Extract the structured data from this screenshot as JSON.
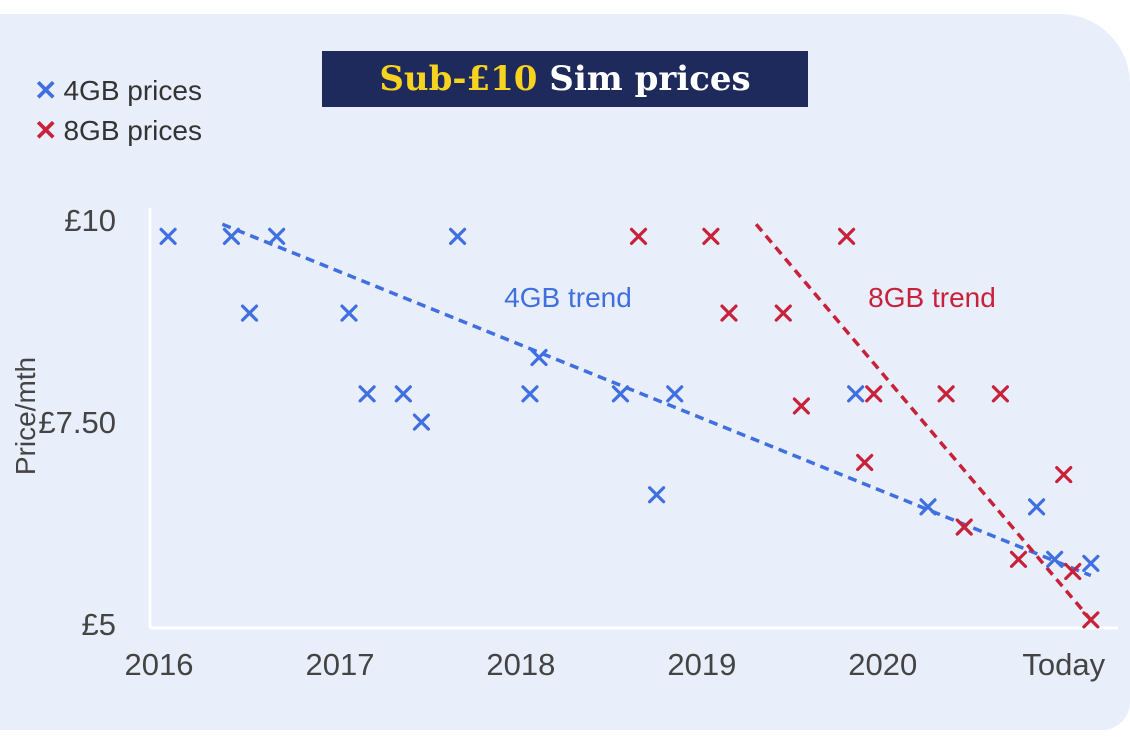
{
  "chart_data": {
    "type": "scatter",
    "title": "Sub-£10 Sim prices",
    "title_highlight": "Sub-£10",
    "title_rest": " Sim prices",
    "ylabel": "Price/mth",
    "xlabel": "",
    "x_ticks": [
      "2016",
      "2017",
      "2018",
      "2019",
      "2020",
      "Today"
    ],
    "x_tick_values": [
      2016,
      2017,
      2018,
      2019,
      2020,
      2021
    ],
    "y_ticks": [
      "£10",
      "£7.50",
      "£5"
    ],
    "y_tick_values": [
      10,
      7.5,
      5
    ],
    "xlim": [
      2015.95,
      2021.3
    ],
    "ylim": [
      4.95,
      10.3
    ],
    "grid": false,
    "legend_position": "top-left",
    "series": [
      {
        "name": "4GB prices",
        "color": "#3f6fe0",
        "marker": "x",
        "points": [
          [
            2016.05,
            9.8
          ],
          [
            2016.4,
            9.8
          ],
          [
            2016.5,
            8.85
          ],
          [
            2016.65,
            9.8
          ],
          [
            2017.05,
            8.85
          ],
          [
            2017.15,
            7.85
          ],
          [
            2017.35,
            7.85
          ],
          [
            2017.45,
            7.5
          ],
          [
            2017.65,
            9.8
          ],
          [
            2018.05,
            7.85
          ],
          [
            2018.1,
            8.3
          ],
          [
            2018.55,
            7.85
          ],
          [
            2018.75,
            6.6
          ],
          [
            2018.85,
            7.85
          ],
          [
            2019.85,
            7.85
          ],
          [
            2020.25,
            6.45
          ],
          [
            2020.85,
            6.45
          ],
          [
            2020.95,
            5.8
          ],
          [
            2021.15,
            5.75
          ]
        ],
        "trend": {
          "label": "4GB trend",
          "start": [
            2016.35,
            9.95
          ],
          "end": [
            2021.15,
            5.6
          ]
        }
      },
      {
        "name": "8GB prices",
        "color": "#c8213a",
        "marker": "x",
        "points": [
          [
            2018.65,
            9.8
          ],
          [
            2019.05,
            9.8
          ],
          [
            2019.15,
            8.85
          ],
          [
            2019.45,
            8.85
          ],
          [
            2019.55,
            7.7
          ],
          [
            2019.8,
            9.8
          ],
          [
            2019.9,
            7.0
          ],
          [
            2019.95,
            7.85
          ],
          [
            2020.35,
            7.85
          ],
          [
            2020.45,
            6.2
          ],
          [
            2020.65,
            7.85
          ],
          [
            2020.75,
            5.8
          ],
          [
            2021.0,
            6.85
          ],
          [
            2021.05,
            5.65
          ],
          [
            2021.15,
            5.05
          ]
        ],
        "trend": {
          "label": "8GB trend",
          "start": [
            2019.3,
            9.95
          ],
          "end": [
            2021.15,
            5.05
          ]
        }
      }
    ]
  }
}
